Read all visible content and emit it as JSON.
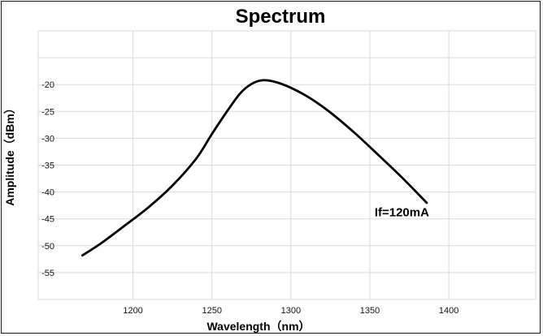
{
  "chart_data": {
    "type": "line",
    "title": "Spectrum",
    "xlabel": "Wavelength（nm）",
    "ylabel": "Amplitude（dBm）",
    "xlim": [
      1140,
      1455
    ],
    "ylim": [
      -60,
      -10
    ],
    "x_ticks": [
      1200,
      1250,
      1300,
      1350,
      1400
    ],
    "y_ticks": [
      -20,
      -25,
      -30,
      -35,
      -40,
      -45,
      -50,
      -55
    ],
    "grid": true,
    "series": [
      {
        "x": [
          1168,
          1180,
          1195,
          1210,
          1225,
          1240,
          1250,
          1260,
          1268,
          1275,
          1282,
          1290,
          1300,
          1312,
          1325,
          1340,
          1355,
          1370,
          1386
        ],
        "y": [
          -51.8,
          -49.5,
          -46.2,
          -42.8,
          -38.8,
          -33.8,
          -29.2,
          -24.8,
          -21.6,
          -19.9,
          -19.2,
          -19.5,
          -20.6,
          -22.5,
          -25.2,
          -28.9,
          -33.0,
          -37.2,
          -42.0
        ]
      }
    ],
    "annotation": {
      "text": "If=120mA",
      "x": 1353,
      "y": -44.5
    }
  }
}
